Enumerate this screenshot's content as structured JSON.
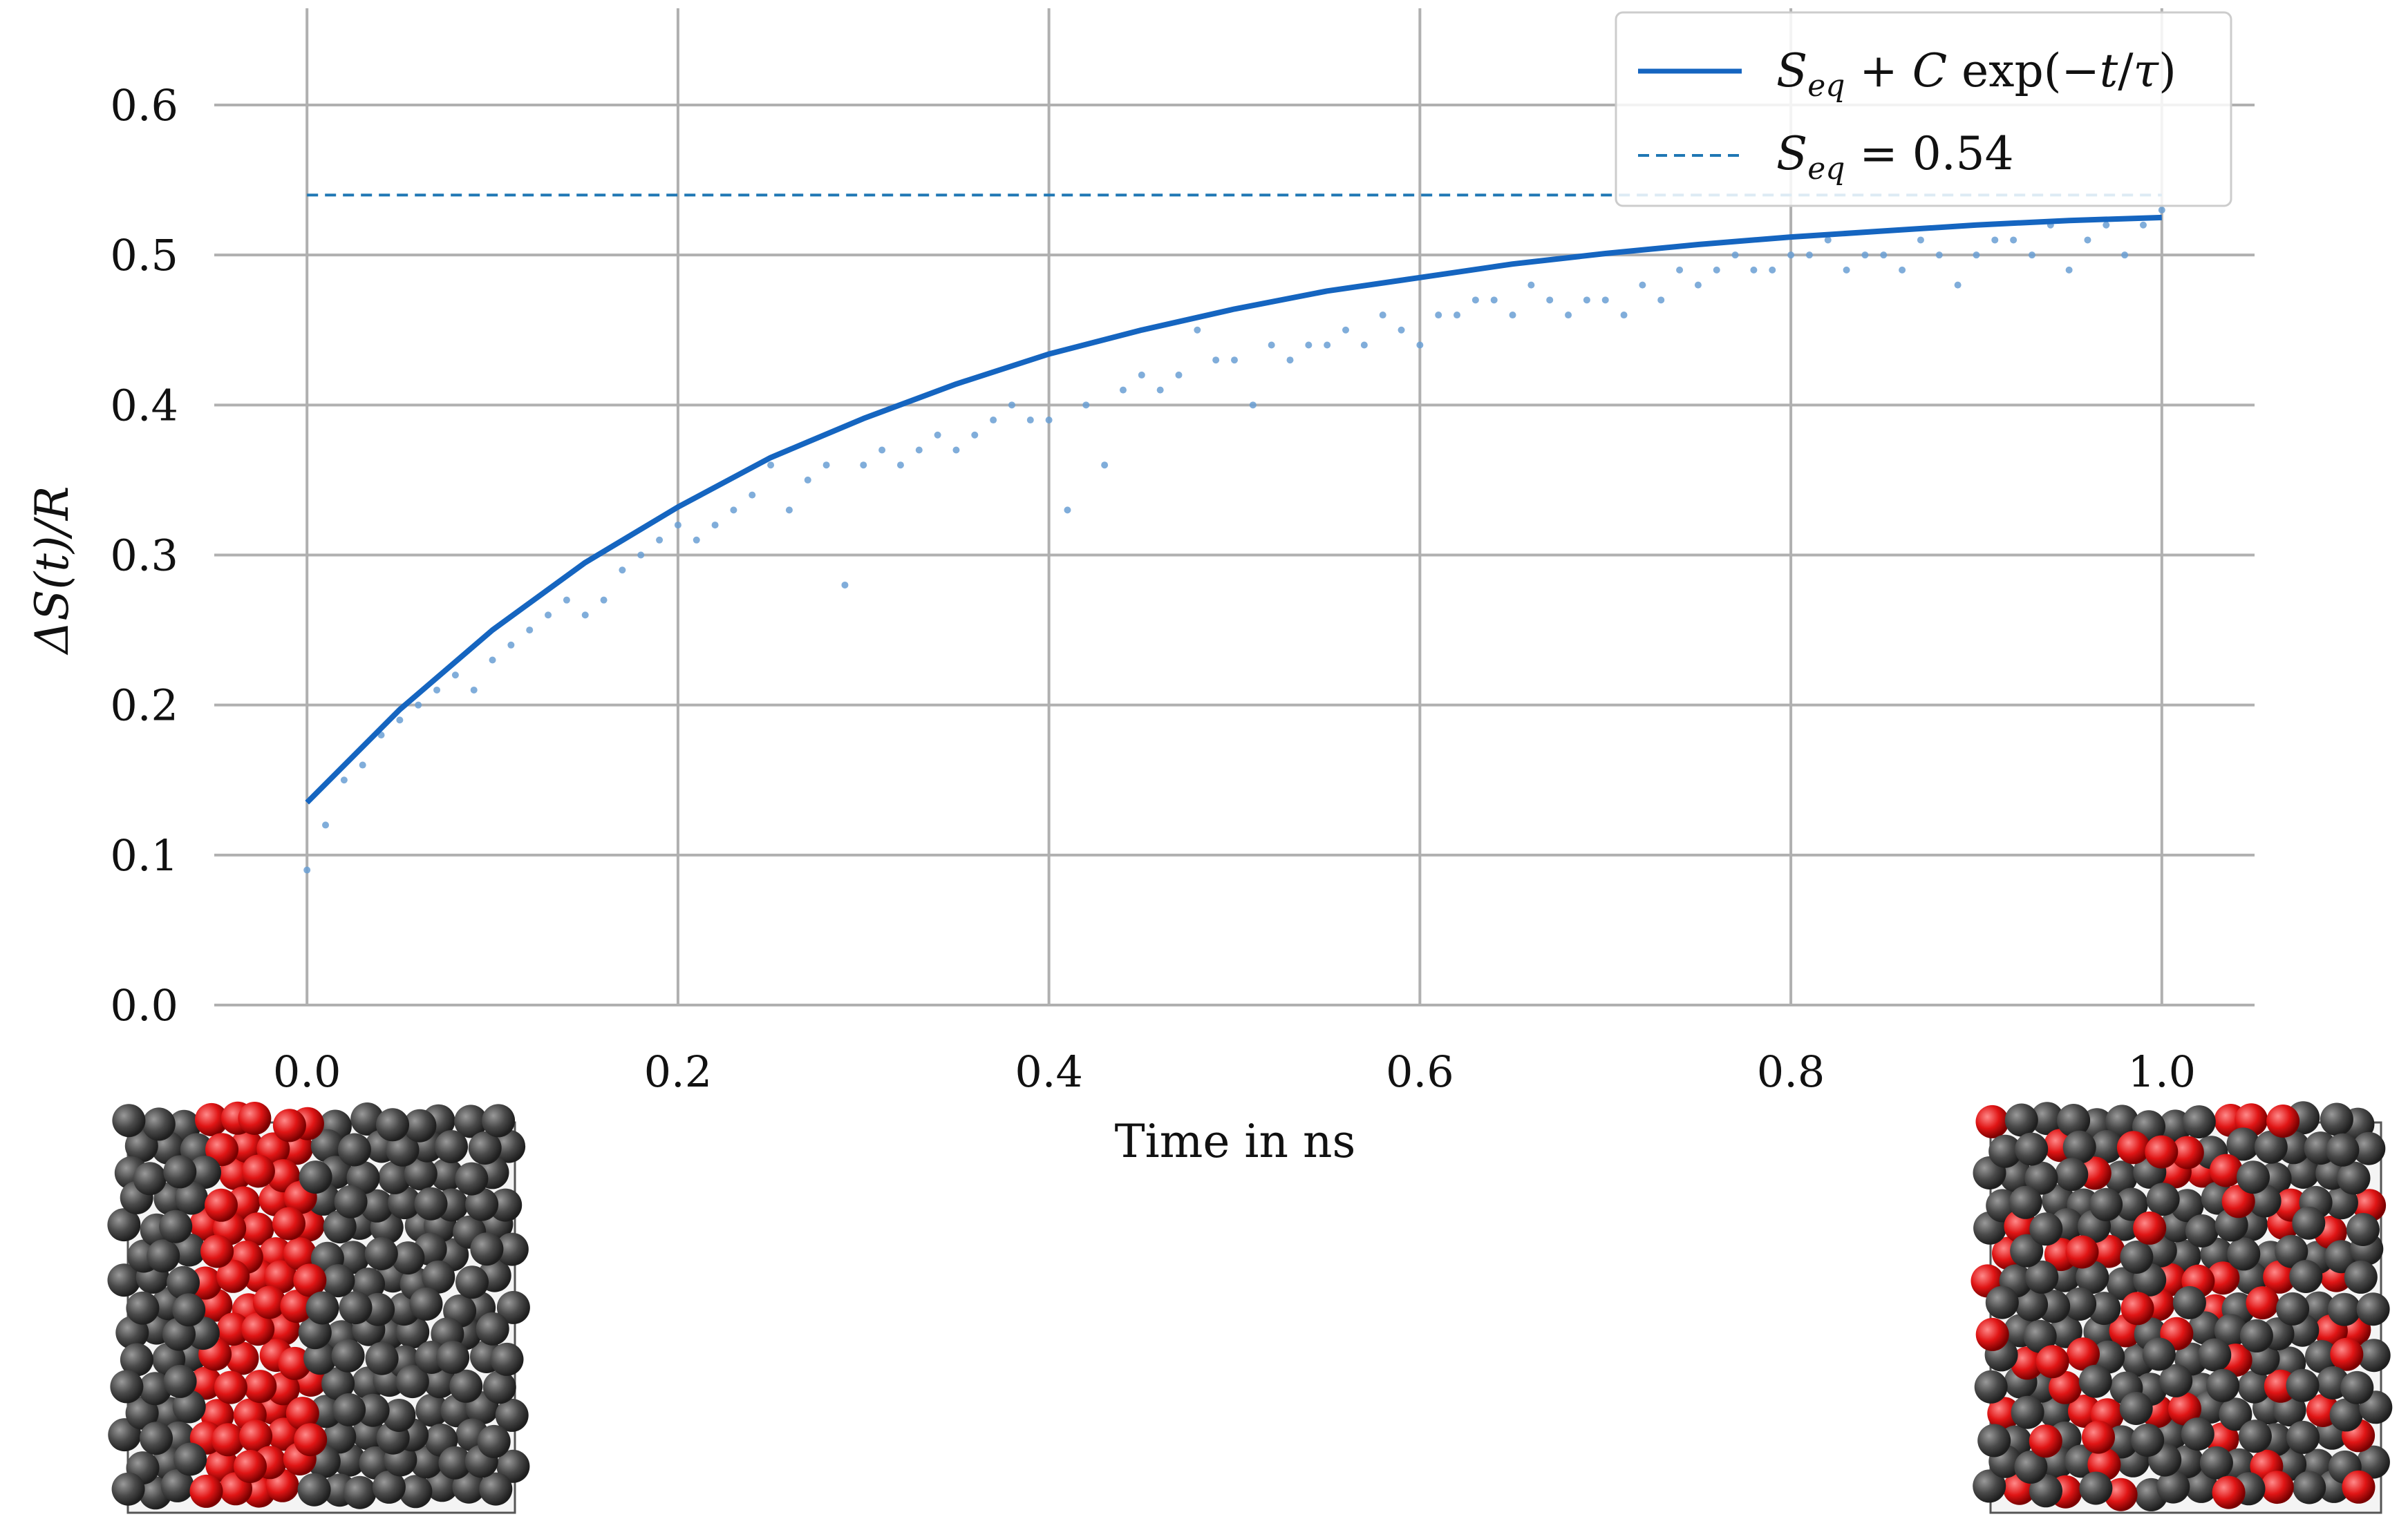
{
  "chart_data": {
    "type": "line",
    "title": "",
    "xlabel": "Time in ns",
    "ylabel": "ΔS(t)/R",
    "xlim": [
      -0.05,
      1.05
    ],
    "ylim": [
      0.0,
      0.67
    ],
    "x_ticks": [
      "0.0",
      "0.2",
      "0.4",
      "0.6",
      "0.8",
      "1.0"
    ],
    "y_ticks": [
      "0.0",
      "0.1",
      "0.2",
      "0.3",
      "0.4",
      "0.5",
      "0.6"
    ],
    "grid": true,
    "legend_position": "top-right",
    "fit": {
      "S_eq": 0.54,
      "C": -0.405,
      "tau": 0.3
    },
    "series": [
      {
        "name": "S_eq + C exp(−t/τ)",
        "kind": "line",
        "style": "solid",
        "color": "#1565c0",
        "x": [
          0.0,
          0.05,
          0.1,
          0.15,
          0.2,
          0.25,
          0.3,
          0.35,
          0.4,
          0.45,
          0.5,
          0.55,
          0.6,
          0.65,
          0.7,
          0.75,
          0.8,
          0.85,
          0.9,
          0.95,
          1.0
        ],
        "y": [
          0.135,
          0.197,
          0.25,
          0.295,
          0.332,
          0.365,
          0.391,
          0.414,
          0.434,
          0.45,
          0.464,
          0.476,
          0.485,
          0.494,
          0.501,
          0.507,
          0.512,
          0.516,
          0.52,
          0.523,
          0.525
        ]
      },
      {
        "name": "S_eq = 0.54",
        "kind": "hline",
        "style": "dashed",
        "color": "#1f77b4",
        "y": 0.54
      },
      {
        "name": "",
        "kind": "scatter",
        "color": "#6a9fd4",
        "x": [
          0.0,
          0.01,
          0.02,
          0.03,
          0.04,
          0.05,
          0.06,
          0.07,
          0.08,
          0.09,
          0.1,
          0.11,
          0.12,
          0.13,
          0.14,
          0.15,
          0.16,
          0.17,
          0.18,
          0.19,
          0.2,
          0.21,
          0.22,
          0.23,
          0.24,
          0.25,
          0.26,
          0.27,
          0.28,
          0.29,
          0.3,
          0.31,
          0.32,
          0.33,
          0.34,
          0.35,
          0.36,
          0.37,
          0.38,
          0.39,
          0.4,
          0.41,
          0.42,
          0.43,
          0.44,
          0.45,
          0.46,
          0.47,
          0.48,
          0.49,
          0.5,
          0.51,
          0.52,
          0.53,
          0.54,
          0.55,
          0.56,
          0.57,
          0.58,
          0.59,
          0.6,
          0.61,
          0.62,
          0.63,
          0.64,
          0.65,
          0.66,
          0.67,
          0.68,
          0.69,
          0.7,
          0.71,
          0.72,
          0.73,
          0.74,
          0.75,
          0.76,
          0.77,
          0.78,
          0.79,
          0.8,
          0.81,
          0.82,
          0.83,
          0.84,
          0.85,
          0.86,
          0.87,
          0.88,
          0.89,
          0.9,
          0.91,
          0.92,
          0.93,
          0.94,
          0.95,
          0.96,
          0.97,
          0.98,
          0.99,
          1.0
        ],
        "y": [
          0.09,
          0.12,
          0.15,
          0.16,
          0.18,
          0.19,
          0.2,
          0.21,
          0.22,
          0.21,
          0.23,
          0.24,
          0.25,
          0.26,
          0.27,
          0.26,
          0.27,
          0.29,
          0.3,
          0.31,
          0.32,
          0.31,
          0.32,
          0.33,
          0.34,
          0.36,
          0.33,
          0.35,
          0.36,
          0.28,
          0.36,
          0.37,
          0.36,
          0.37,
          0.38,
          0.37,
          0.38,
          0.39,
          0.4,
          0.39,
          0.39,
          0.33,
          0.4,
          0.36,
          0.41,
          0.42,
          0.41,
          0.42,
          0.45,
          0.43,
          0.43,
          0.4,
          0.44,
          0.43,
          0.44,
          0.44,
          0.45,
          0.44,
          0.46,
          0.45,
          0.44,
          0.46,
          0.46,
          0.47,
          0.47,
          0.46,
          0.48,
          0.47,
          0.46,
          0.47,
          0.47,
          0.46,
          0.48,
          0.47,
          0.49,
          0.48,
          0.49,
          0.5,
          0.49,
          0.49,
          0.5,
          0.5,
          0.51,
          0.49,
          0.5,
          0.5,
          0.49,
          0.51,
          0.5,
          0.48,
          0.5,
          0.51,
          0.51,
          0.5,
          0.52,
          0.49,
          0.51,
          0.52,
          0.5,
          0.52,
          0.53
        ]
      }
    ]
  },
  "insets": {
    "left": {
      "description_colors": {
        "dark": "#4a4a4a",
        "red": "#d61818"
      }
    },
    "right": {
      "description_colors": {
        "dark": "#4a4a4a",
        "red": "#d61818"
      }
    }
  }
}
